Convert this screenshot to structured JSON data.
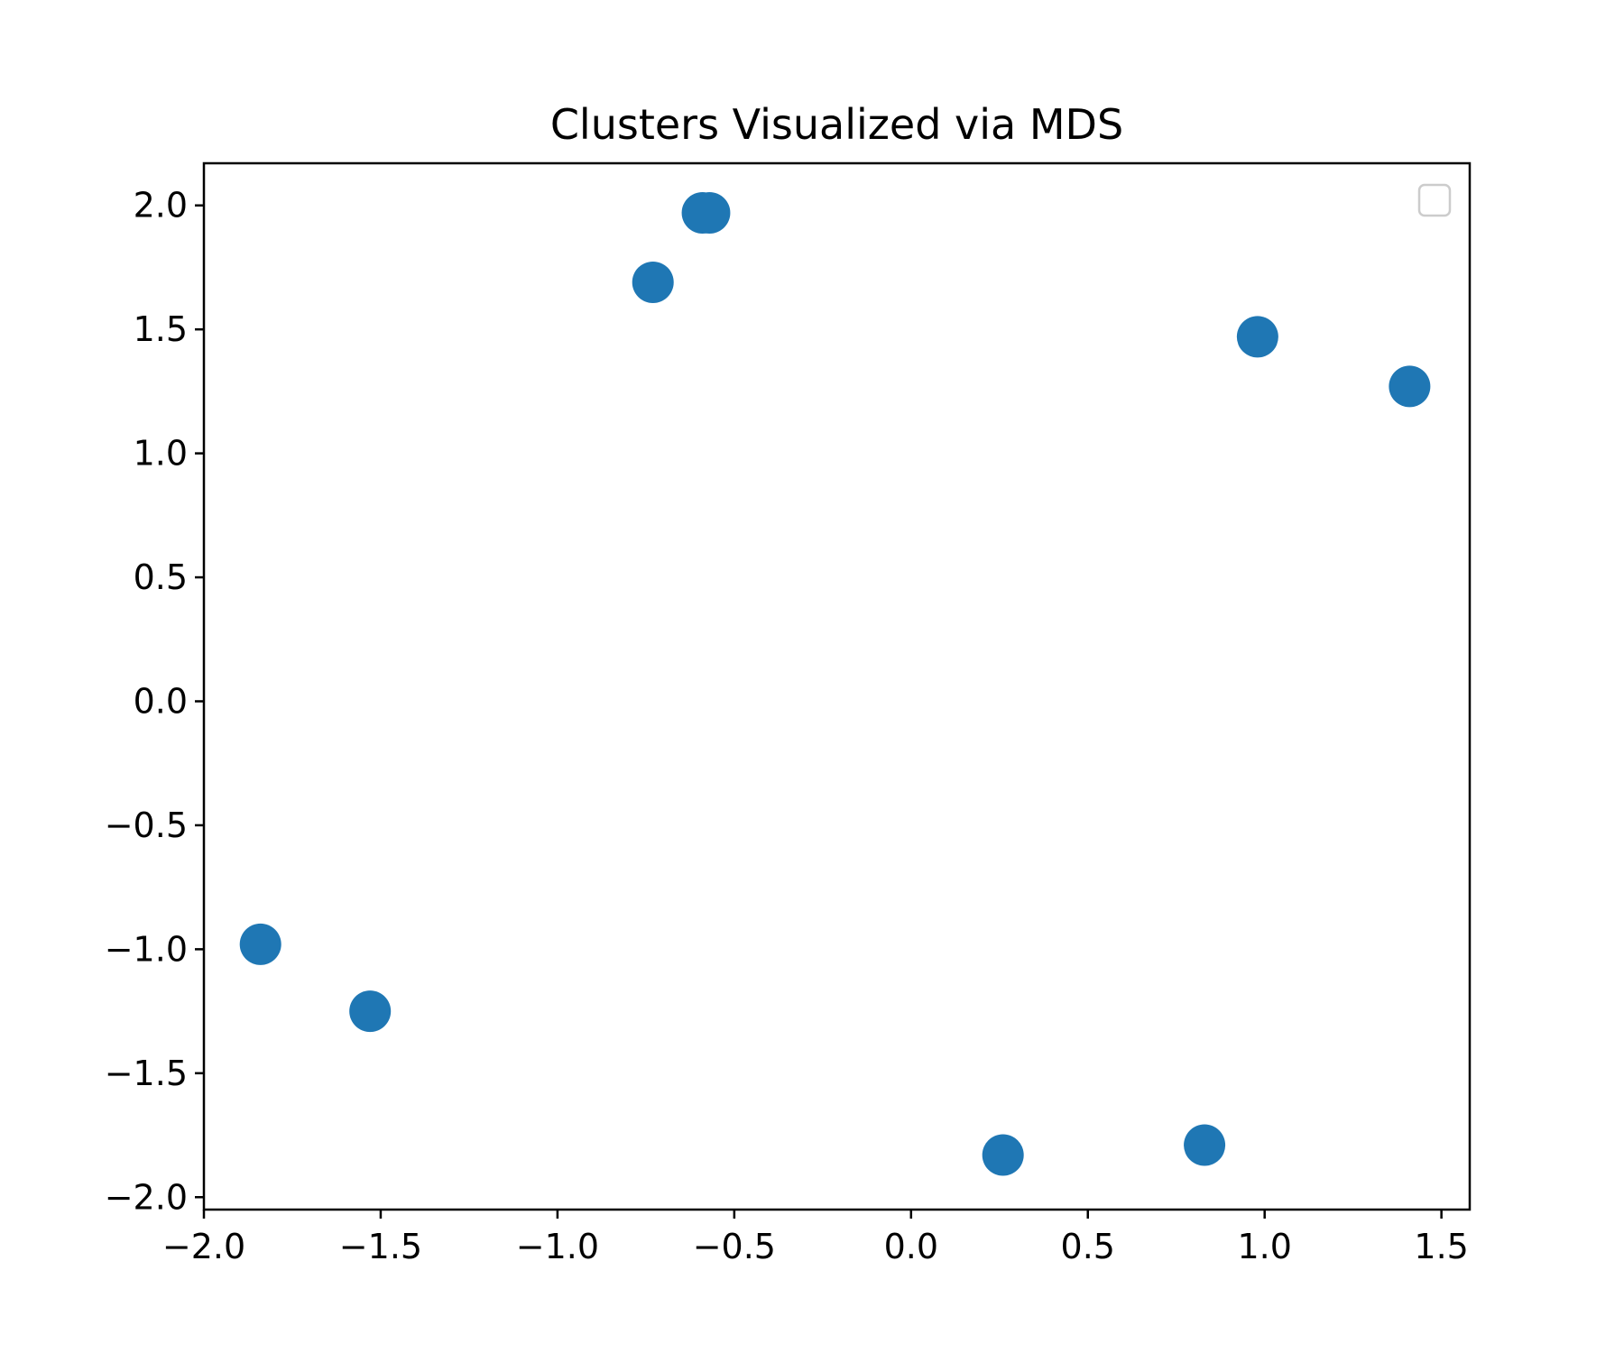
{
  "chart_data": {
    "type": "scatter",
    "title": "Clusters Visualized via MDS",
    "xlabel": "",
    "ylabel": "",
    "xlim": [
      -2.0,
      1.58
    ],
    "ylim": [
      -2.05,
      2.17
    ],
    "x_ticks": [
      -2.0,
      -1.5,
      -1.0,
      -0.5,
      0.0,
      0.5,
      1.0,
      1.5
    ],
    "y_ticks": [
      -2.0,
      -1.5,
      -1.0,
      -0.5,
      0.0,
      0.5,
      1.0,
      1.5,
      2.0
    ],
    "x_tick_labels": [
      "−2.0",
      "−1.5",
      "−1.0",
      "−0.5",
      "0.0",
      "0.5",
      "1.0",
      "1.5"
    ],
    "y_tick_labels": [
      "−2.0",
      "−1.5",
      "−1.0",
      "−0.5",
      "0.0",
      "0.5",
      "1.0",
      "1.5",
      "2.0"
    ],
    "grid": false,
    "legend": {
      "placement": "top-right",
      "entries": []
    },
    "marker_color": "#1f77b4",
    "series": [
      {
        "points": [
          {
            "x": -0.59,
            "y": 1.97
          },
          {
            "x": -0.57,
            "y": 1.97
          },
          {
            "x": -0.73,
            "y": 1.69
          },
          {
            "x": 0.98,
            "y": 1.47
          },
          {
            "x": 1.41,
            "y": 1.27
          },
          {
            "x": -1.84,
            "y": -0.98
          },
          {
            "x": -1.53,
            "y": -1.25
          },
          {
            "x": 0.26,
            "y": -1.83
          },
          {
            "x": 0.83,
            "y": -1.79
          }
        ]
      }
    ]
  }
}
